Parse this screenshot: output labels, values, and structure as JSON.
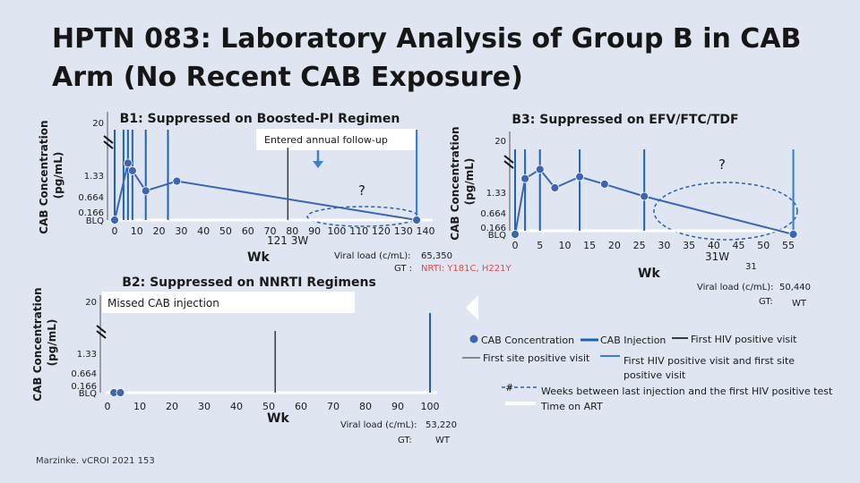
{
  "slide": {
    "title": "HPTN 083: Laboratory Analysis of Group B in CAB Arm (No Recent CAB Exposure)",
    "citation": "Marzinke. vCROI 2021 153"
  },
  "colors": {
    "concentration": "#3e64b2",
    "injection": "#1d63b4",
    "first_site_positive": "#8a8a8a",
    "first_hiv_positive": "#3a3a3a",
    "first_hiv_and_site": "#3a7fd0",
    "weeks_gap": "#2d5fa6",
    "time_on_art": "#ffffff",
    "highlight": "#2d5fa6"
  },
  "legend": {
    "cab_concentration": "CAB Concentration",
    "cab_injection": "CAB Injection",
    "first_hiv_positive": "First HIV positive visit",
    "first_site_positive": "First site positive visit",
    "first_hiv_and_site_line1": "First HIV positive visit and first site",
    "first_hiv_and_site_line2": "positive visit",
    "weeks_gap_symbol": "#",
    "weeks_gap": "Weeks between last injection and the first HIV positive test",
    "time_on_art": "Time on ART"
  },
  "chart_data": [
    {
      "id": "b1",
      "type": "line",
      "title": "B1: Suppressed on Boosted-PI Regimen",
      "ylabel_line1": "CAB Concentration",
      "ylabel_line2": "(pg/mL)",
      "xlabel": "Wk",
      "x_ticks": [
        "0",
        "10",
        "20",
        "30",
        "40",
        "50",
        "60",
        "70",
        "80",
        "90",
        "100",
        "110",
        "120",
        "130",
        "140"
      ],
      "xlim": [
        0,
        140
      ],
      "y_ticks": [
        "BLQ",
        "0.166",
        "0.664",
        "1.33",
        "20"
      ],
      "series": [
        {
          "x": [
            0,
            6,
            8,
            14,
            28,
            136,
            136
          ],
          "y": [
            "BLQ",
            "1.65",
            "1.45",
            "0.85",
            "1.15",
            "BLQ",
            "BLQ"
          ]
        }
      ],
      "injection_weeks": [
        0,
        4,
        6,
        8,
        14,
        24,
        136
      ],
      "first_hiv_positive_week": 78,
      "first_hiv_and_site_week": 136,
      "annotation": "Entered annual follow-up",
      "question_mark": "?",
      "gap_label": "121 3W",
      "viral_load_label": "Viral load (c/mL):",
      "viral_load_value": "65,350",
      "gt_label": "GT :",
      "gt_value": "NRTI: Y181C, H221Y"
    },
    {
      "id": "b2",
      "type": "line",
      "title": "B2: Suppressed on NNRTI Regimens",
      "ylabel_line1": "CAB Concentration",
      "ylabel_line2": "(pg/mL)",
      "xlabel": "Wk",
      "x_ticks": [
        "0",
        "10",
        "20",
        "30",
        "40",
        "50",
        "60",
        "70",
        "80",
        "90",
        "100"
      ],
      "xlim": [
        0,
        100
      ],
      "y_ticks": [
        "BLQ",
        "0.166",
        "0.664",
        "1.33",
        "20"
      ],
      "series": [
        {
          "x": [
            2,
            4
          ],
          "y": [
            "BLQ",
            "BLQ"
          ]
        }
      ],
      "injection_weeks": [
        100
      ],
      "first_hiv_positive_week": 52,
      "annotation": "Missed CAB injection",
      "viral_load_label": "Viral load (c/mL):",
      "viral_load_value": "53,220",
      "gt_label": "GT:",
      "gt_value": "WT"
    },
    {
      "id": "b3",
      "type": "line",
      "title": "B3: Suppressed on EFV/FTC/TDF",
      "ylabel_line1": "CAB Concentration",
      "ylabel_line2": "(pg/mL)",
      "xlabel": "Wk",
      "x_ticks": [
        "0",
        "5",
        "10",
        "15",
        "20",
        "25",
        "30",
        "35",
        "40",
        "45",
        "50",
        "55"
      ],
      "xlim": [
        0,
        55
      ],
      "y_ticks": [
        "BLQ",
        "0.166",
        "0.664",
        "1.33",
        "20"
      ],
      "series": [
        {
          "x": [
            0,
            2,
            5,
            8,
            13,
            18,
            26,
            56
          ],
          "y": [
            "BLQ",
            "1.7",
            "1.95",
            "1.45",
            "1.75",
            "1.55",
            "1.2",
            "BLQ"
          ]
        }
      ],
      "injection_weeks": [
        0,
        2,
        5,
        13,
        26,
        56
      ],
      "first_hiv_and_site_week": 56,
      "question_mark": "?",
      "gap_label": "31W",
      "gap_number": "31",
      "viral_load_label": "Viral load (c/mL):",
      "viral_load_value": "50,440",
      "gt_label": "GT:",
      "gt_value": "WT"
    }
  ]
}
